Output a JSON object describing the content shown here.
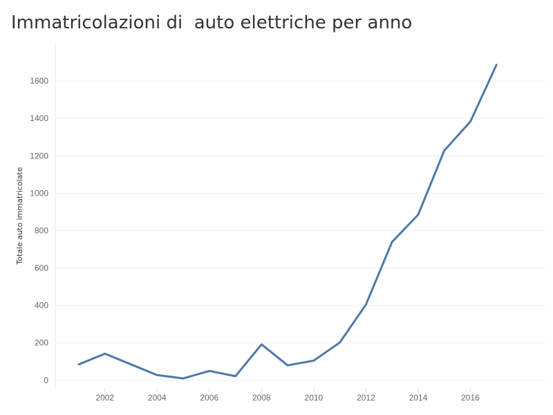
{
  "chart_data": {
    "type": "line",
    "title": "Immatricolazioni di  auto elettriche per anno",
    "xlabel": "",
    "ylabel": "Totale auto immatricolate",
    "x": [
      2001,
      2002,
      2003,
      2004,
      2005,
      2006,
      2007,
      2008,
      2009,
      2010,
      2011,
      2012,
      2013,
      2014,
      2015,
      2016,
      2017
    ],
    "series": [
      {
        "values": [
          85,
          142,
          85,
          28,
          10,
          50,
          22,
          192,
          80,
          105,
          202,
          405,
          740,
          885,
          1228,
          1383,
          1686
        ],
        "color": "#4e79a7"
      }
    ],
    "x_ticks": [
      "2002",
      "2004",
      "2006",
      "2008",
      "2010",
      "2012",
      "2014",
      "2016"
    ],
    "y_ticks": [
      "0",
      "200",
      "400",
      "600",
      "800",
      "1000",
      "1200",
      "1400",
      "1600"
    ],
    "xlim": [
      2000.1,
      2018.9
    ],
    "ylim": [
      -45,
      1800
    ],
    "grid": true,
    "legend": "none"
  }
}
